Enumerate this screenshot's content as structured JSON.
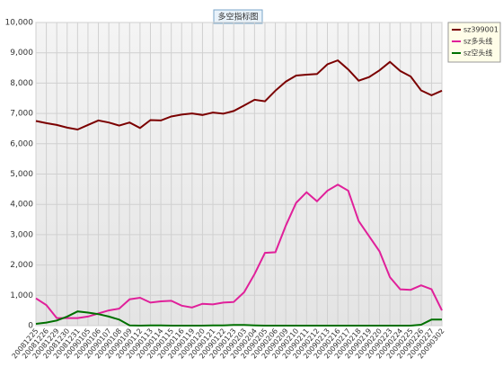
{
  "chart_data": {
    "type": "line",
    "title": "多空指标图",
    "categories": [
      "20081225",
      "20081226",
      "20081229",
      "20081230",
      "20081231",
      "20090105",
      "20090106",
      "20090107",
      "20090108",
      "20090109",
      "20090112",
      "20090113",
      "20090114",
      "20090115",
      "20090116",
      "20090119",
      "20090120",
      "20090121",
      "20090122",
      "20090123",
      "20090203",
      "20090204",
      "20090205",
      "20090206",
      "20090209",
      "20090210",
      "20090211",
      "20090212",
      "20090213",
      "20090216",
      "20090217",
      "20090218",
      "20090219",
      "20090220",
      "20090223",
      "20090224",
      "20090225",
      "20090226",
      "20090227",
      "20090302"
    ],
    "series": [
      {
        "name": "sz399001",
        "color": "#7b0000",
        "values": [
          6750,
          6680,
          6620,
          6530,
          6470,
          6620,
          6770,
          6700,
          6600,
          6700,
          6520,
          6780,
          6770,
          6900,
          6960,
          7000,
          6950,
          7030,
          6990,
          7080,
          7260,
          7450,
          7400,
          7750,
          8050,
          8250,
          8280,
          8300,
          8620,
          8750,
          8450,
          8080,
          8200,
          8420,
          8700,
          8400,
          8220,
          7760,
          7600,
          7750
        ]
      },
      {
        "name": "sz多头线",
        "color": "#e0209a",
        "values": [
          900,
          680,
          250,
          250,
          250,
          300,
          400,
          500,
          560,
          870,
          920,
          760,
          800,
          820,
          660,
          600,
          720,
          700,
          760,
          780,
          1100,
          1700,
          2400,
          2420,
          3300,
          4050,
          4400,
          4100,
          4450,
          4650,
          4450,
          3450,
          2950,
          2450,
          1600,
          1200,
          1180,
          1330,
          1200,
          500
        ]
      },
      {
        "name": "sz空头线",
        "color": "#007000",
        "values": [
          60,
          100,
          170,
          300,
          470,
          430,
          380,
          300,
          200,
          10,
          0,
          10,
          10,
          0,
          0,
          0,
          0,
          10,
          10,
          20,
          20,
          10,
          0,
          0,
          0,
          0,
          0,
          0,
          0,
          0,
          0,
          0,
          0,
          0,
          0,
          0,
          0,
          30,
          200,
          200
        ]
      }
    ],
    "ylim": [
      0,
      10000
    ],
    "yticks": [
      0,
      {
        "value": 1000,
        "label": "1,000"
      },
      {
        "value": 2000,
        "label": "2,000"
      },
      {
        "value": 3000,
        "label": "3,000"
      },
      {
        "value": 4000,
        "label": "4,000"
      },
      {
        "value": 5000,
        "label": "5,000"
      },
      {
        "value": 6000,
        "label": "6,000"
      },
      {
        "value": 7000,
        "label": "7,000"
      },
      {
        "value": 8000,
        "label": "8,000"
      },
      {
        "value": 9000,
        "label": "9,000"
      },
      {
        "value": 10000,
        "label": "10,000"
      }
    ],
    "grid": true,
    "legend": "right"
  }
}
